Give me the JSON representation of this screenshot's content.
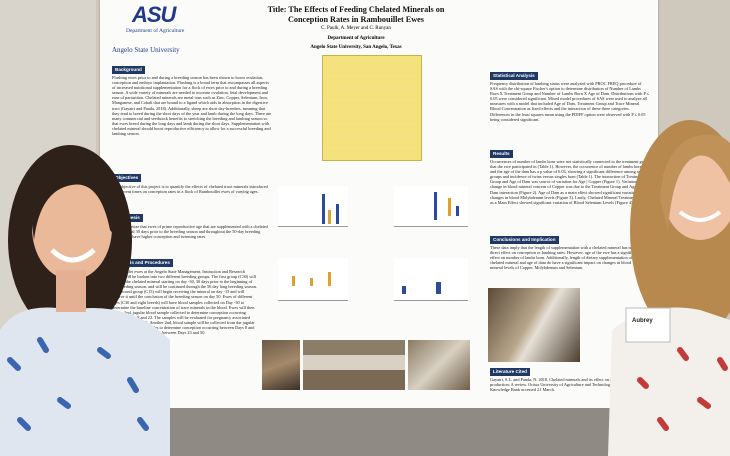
{
  "poster": {
    "logo": {
      "mark": "ASU",
      "department": "Department of Agriculture",
      "university": "Angelo State University"
    },
    "title": "Title: The Effects of Feeding Chelated Minerals on Conception Rates in Rambouillet Ewes",
    "authors": "C. Paulk, A. Meyer and C. Runyan",
    "department": "Department of Agriculture",
    "affiliation": "Angelo State University, San Angelo, Texas",
    "sections": [
      {
        "heading": "Background",
        "text": "Flushing ewes prior to and during a breeding season has been shown to boost ovulation, conception and embryo implantation. Flushing is a broad term that encompasses all aspects of increased nutritional supplementation for a flock of ewes prior to and during a breeding season. A wide variety of minerals are needed to increase ovulation, fetal development and ease of parturition. Chelated minerals are metal ions such as Zinc, Copper, Selenium, Iron, Manganese, and Cobalt that are bound to a ligand which aids in absorption in the digestive tract (Gayatri and Panda, 2018). Additionally, sheep are short day-breeders, meaning that they tend to breed during the short days of the year and lamb during the long days. There are many commercial and seedstock benefits to stretching the breeding and lambing season so that ewes breed during the long days and lamb during the short days. Supplementation with chelated mineral should boost reproductive efficiency to allow for a successful breeding and lambing season."
      },
      {
        "heading": "Objectives",
        "text": "The objective of this project is to quantify the effects of chelated trace minerals introduced in different times on conception rates in a flock of Rambouillet ewes of varying ages."
      },
      {
        "heading": "Hypothesis",
        "text": "We hypothesize that ewes of prime reproductive age that are supplemented with a chelated trace mineral 30 days prior to the breeding season and throughout the 50-day breeding season will have higher conception and twinning rates."
      },
      {
        "heading": "Methods and Procedures",
        "text": "Rambouillet ewes at the Angelo State Management, Instruction and Research Center will be broken into two different breeding groups. The first group (C30) will receive the chelated mineral starting on day -30, 30 days prior to the beginning of the breeding season, and will be continued through the 50 day long breeding season. The second group (C15) will begin receiving the mineral on day -15 and will receive it until the conclusion of the breeding season on day 50. Ewes of different ages (C30 and eight breeds) will have blood samples collected on Day -30 to determine the baseline concentration of trace minerals in the blood. Ewes will then have a 2nd, jugular blood sample collected to determine conception occurring between Days 8 and 22. The samples will be evaluated for pregnancy associated glycoproteins (PAG). Another 2nd, blood sample will be collected from the jugular vein of each of the females to determine conception occurring between Days 8 and 22 and conception occurring between Days 23 and 50."
      },
      {
        "heading": "Statistical Analysis",
        "text": "Frequency distribution of lambing status were analyzed with PROC FREQ procedure of SAS with the chi-square Fischer's option to determine distribution of Number of Lambs Born X Treatment Group and Number of Lambs Born X Age of Dam. Distributions with P ≤ 0.05 were considered significant. Mixed model procedures of SAS were used to analyze all measures with a model that included Age of Dam, Treatment Group and Trace Mineral Blood Concentration as fixed effects and the interaction of these three categories. Differences in the least squares mean using the PDIFF option were observed with P ≤ 0.05 being considered significant."
      },
      {
        "heading": "Results",
        "text": "Occurrences of number of lambs born were not statistically connected to the treatment group that the ewe participated in (Table 1). However, the occurrence of number of lambs born, and the age of the dam has a p value of 0.03, showing a significant difference among age groups and incidence of twins versus singles born (Table 1). The interaction of Treatment Group and Age of Dam was source of variation for Age | Copper (Figure 1). Variation for the change in blood mineral concern of Copper was due to the Treatment Group and Age of Dam interaction (Figure 2). Age of Dam as a main effect showed significant variation in the changes in blood Molybdenum levels (Figure 3). Lastly, Chelated Mineral Treatment Group as a Main Effect showed significant variation of Blood Selenium Levels (Figure 4)."
      },
      {
        "heading": "Conclusions and Implication",
        "text": "These data imply that the length of supplementation with a chelated mineral has no direct effect on conception or lambing rates. However, age of the ewe has a significant effect on number of lambs born. Additionally, length of dietary supplementation of a chelated mineral and age of dam do have a significant impact on changes in blood mineral levels of Copper, Molybdenum and Selenium."
      },
      {
        "heading": "Literature Cited",
        "text": "Gayatri, S.L. and Panda, N. 2018. Chelated minerals and its effect on animal production: A review. Orissa University of Agriculture and Technology, Bhubaneswar: Knowledge Bank accessed 21 March."
      }
    ]
  },
  "badge": {
    "name": "Aubrey"
  }
}
